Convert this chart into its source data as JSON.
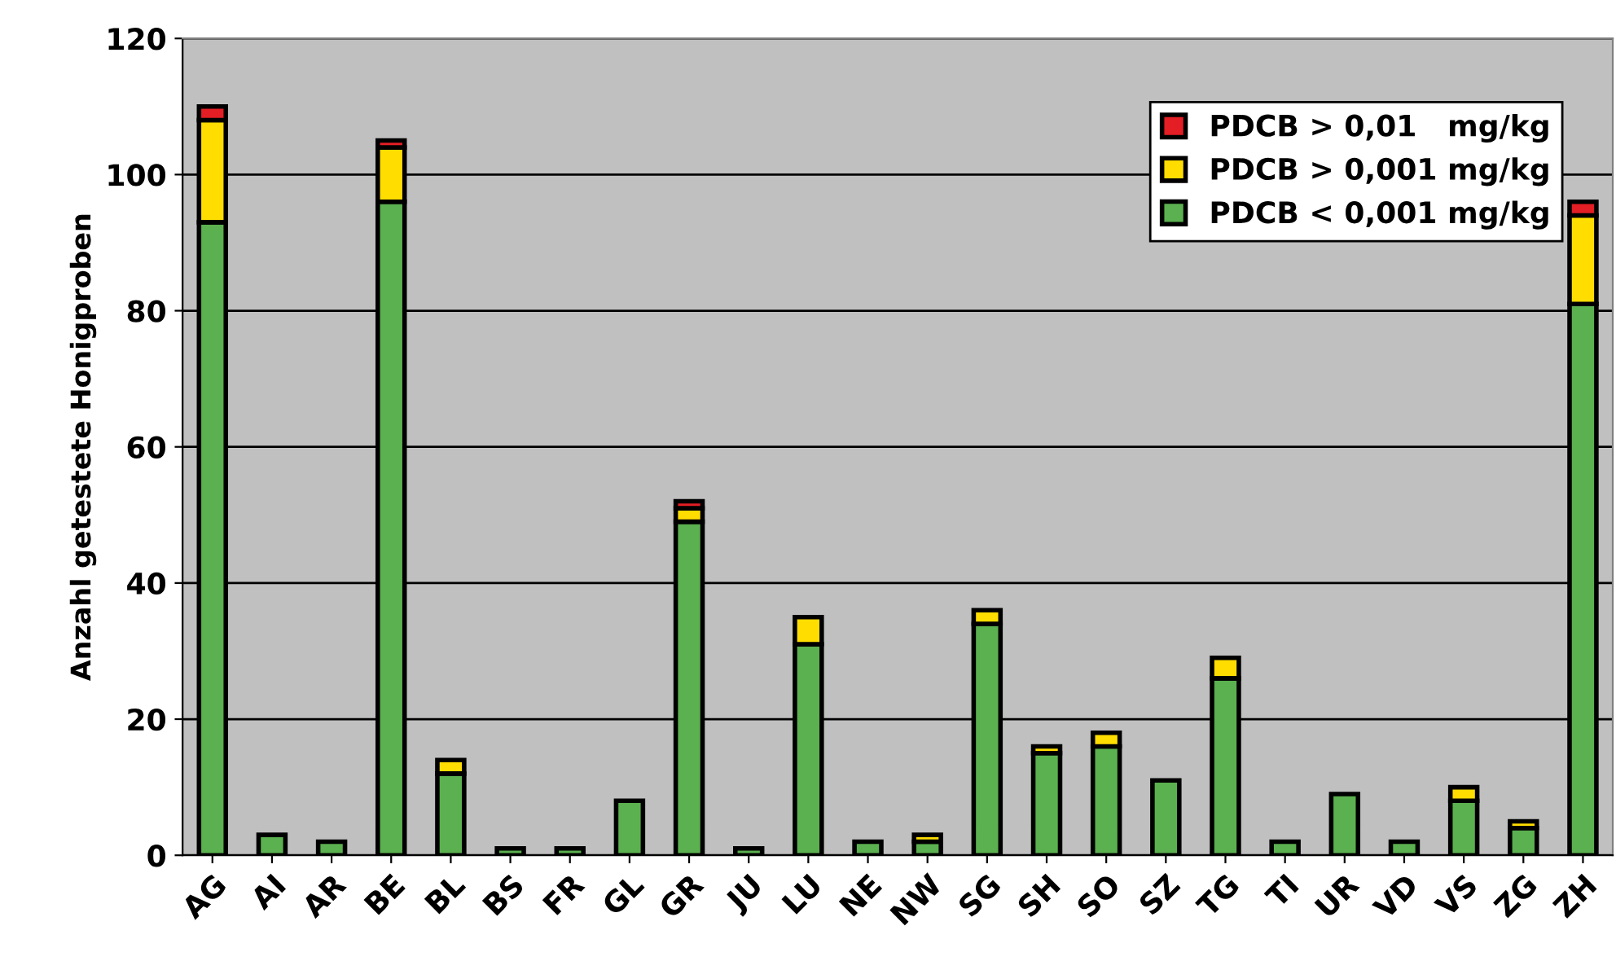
{
  "chart_data": {
    "type": "bar",
    "stacked": true,
    "ylabel": "Anzahl getestete Honigproben",
    "categories": [
      "AG",
      "AI",
      "AR",
      "BE",
      "BL",
      "BS",
      "FR",
      "GL",
      "GR",
      "JU",
      "LU",
      "NE",
      "NW",
      "SG",
      "SH",
      "SO",
      "SZ",
      "TG",
      "TI",
      "UR",
      "VD",
      "VS",
      "ZG",
      "ZH"
    ],
    "series": [
      {
        "name": "PDCB < 0,001 mg/kg",
        "color": "#5bb04f",
        "values": [
          93,
          3,
          2,
          96,
          12,
          1,
          1,
          8,
          49,
          1,
          31,
          2,
          2,
          34,
          15,
          16,
          11,
          26,
          2,
          9,
          2,
          8,
          4,
          81
        ]
      },
      {
        "name": "PDCB > 0,001 mg/kg",
        "color": "#ffdd00",
        "values": [
          15,
          null,
          null,
          8,
          2,
          null,
          null,
          null,
          2,
          null,
          4,
          null,
          1,
          2,
          1,
          2,
          null,
          3,
          null,
          null,
          null,
          2,
          1,
          13
        ]
      },
      {
        "name": "PDCB > 0,01   mg/kg",
        "color": "#e31e24",
        "values": [
          2,
          null,
          null,
          1,
          null,
          null,
          null,
          null,
          1,
          null,
          null,
          null,
          null,
          null,
          null,
          null,
          null,
          null,
          null,
          null,
          null,
          null,
          null,
          2
        ]
      }
    ],
    "ylim": [
      0,
      120
    ],
    "yticks": [
      0,
      20,
      40,
      60,
      80,
      100,
      120
    ],
    "grid": "y",
    "legend": "top right"
  }
}
